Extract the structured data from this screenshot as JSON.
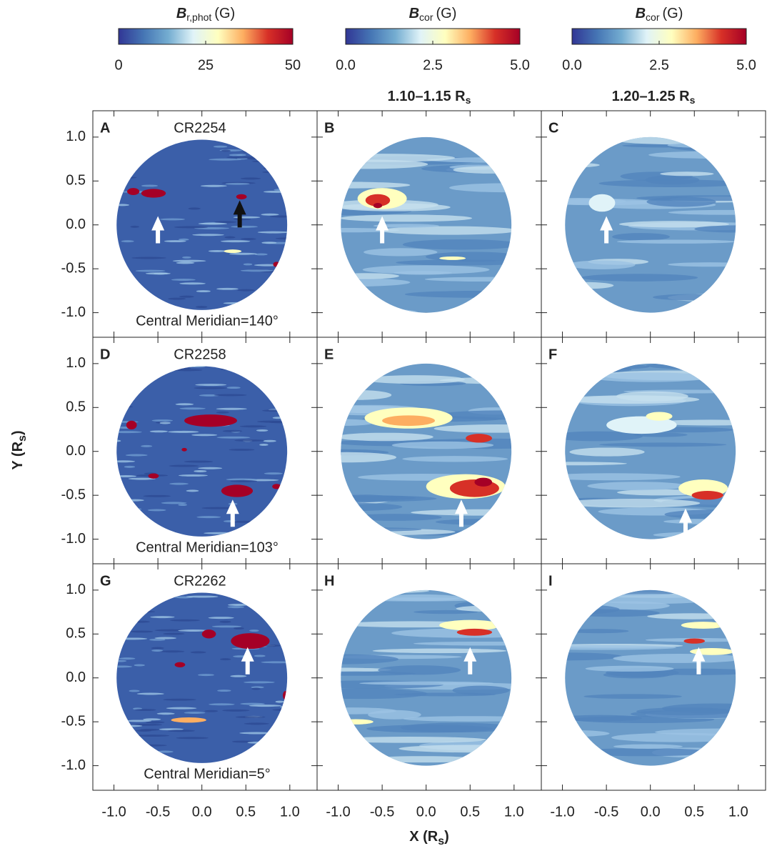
{
  "chart_data": {
    "type": "image-grid",
    "colorbars": [
      {
        "title": {
          "symbol": "B",
          "sub": "r,phot",
          "unit": "(G)"
        },
        "lim": [
          0,
          50
        ],
        "ticks": [
          0,
          25,
          50
        ]
      },
      {
        "title": {
          "symbol": "B",
          "sub": "cor",
          "unit": "(G)"
        },
        "lim": [
          0,
          5
        ],
        "ticks": [
          {
            "value": 0,
            "label": "0.0"
          },
          {
            "value": 2.5,
            "label": "2.5"
          },
          {
            "value": 5,
            "label": "5.0"
          }
        ]
      },
      {
        "title": {
          "symbol": "B",
          "sub": "cor",
          "unit": "(G)"
        },
        "lim": [
          0,
          5
        ],
        "ticks": [
          {
            "value": 0,
            "label": "0.0"
          },
          {
            "value": 2.5,
            "label": "2.5"
          },
          {
            "value": 5,
            "label": "5.0"
          }
        ]
      }
    ],
    "colors": [
      "#313695",
      "#4575b4",
      "#74add1",
      "#e0f3f8",
      "#ffffbf",
      "#fdae61",
      "#d73027",
      "#a50026"
    ],
    "column_titles": [
      {
        "main": "1.10–1.15 R",
        "sub": "s"
      },
      {
        "main": "1.20–1.25 R",
        "sub": "s"
      }
    ],
    "panels": [
      {
        "letter": "A",
        "label": "CR2254",
        "meridian": "Central Meridian=140°"
      },
      {
        "letter": "B"
      },
      {
        "letter": "C"
      },
      {
        "letter": "D",
        "label": "CR2258",
        "meridian": "Central Meridian=103°"
      },
      {
        "letter": "E"
      },
      {
        "letter": "F"
      },
      {
        "letter": "G",
        "label": "CR2262",
        "meridian": "Central Meridian=5°"
      },
      {
        "letter": "H"
      },
      {
        "letter": "I"
      }
    ],
    "xlabel": {
      "main": "X (R",
      "sub": "s",
      "end": ")"
    },
    "ylabel": {
      "main": "Y (R",
      "sub": "s",
      "end": ")"
    },
    "xlim": [
      -1.24,
      1.31
    ],
    "ylim": [
      -1.28,
      1.3
    ],
    "xticks": [
      {
        "value": -1,
        "label": "-1.0"
      },
      {
        "value": -0.5,
        "label": "-0.5"
      },
      {
        "value": 0,
        "label": "0.0"
      },
      {
        "value": 0.5,
        "label": "0.5"
      },
      {
        "value": 1,
        "label": "1.0"
      }
    ],
    "yticks": [
      {
        "value": -1,
        "label": "-1.0"
      },
      {
        "value": -0.5,
        "label": "-0.5"
      },
      {
        "value": 0,
        "label": "0.0"
      },
      {
        "value": 0.5,
        "label": "0.5"
      },
      {
        "value": 1,
        "label": "1.0"
      }
    ]
  }
}
